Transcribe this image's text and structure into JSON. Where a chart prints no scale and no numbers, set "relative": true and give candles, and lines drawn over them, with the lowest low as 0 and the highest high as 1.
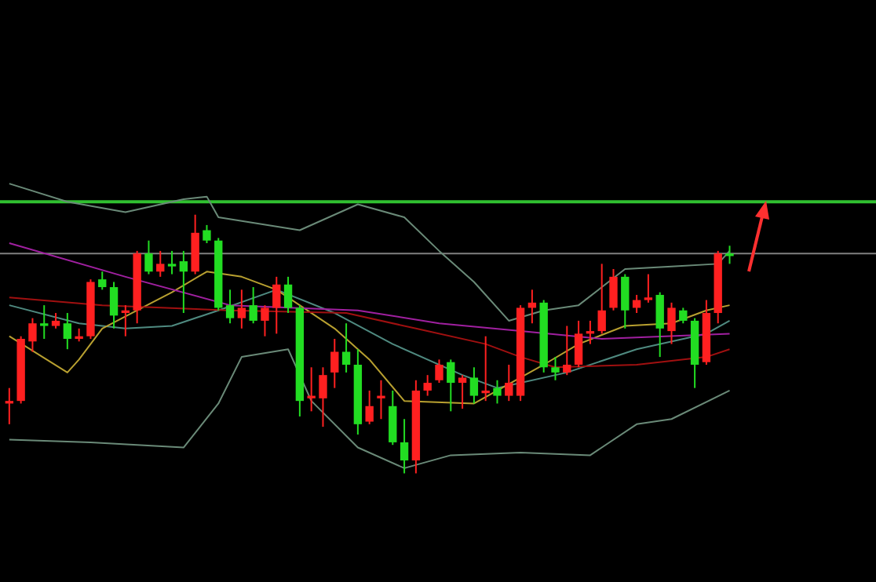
{
  "chart_data": {
    "type": "candlestick",
    "relative": true,
    "categories": [
      null,
      null,
      null,
      null,
      null,
      null,
      null,
      null,
      null,
      null,
      null,
      null,
      null,
      null,
      null,
      null,
      null,
      null,
      null,
      null,
      null,
      null,
      null,
      null,
      null,
      null,
      null,
      null,
      null,
      null,
      null,
      null,
      null,
      null,
      null,
      null,
      null,
      null,
      null,
      null,
      null,
      null,
      null,
      null,
      null,
      null,
      null,
      null,
      null,
      null,
      null,
      null,
      null,
      null,
      null,
      null,
      null,
      null,
      null,
      null,
      null,
      null,
      null
    ],
    "ohlc": [
      [
        0.27,
        0.33,
        0.19,
        0.28
      ],
      [
        0.28,
        0.53,
        0.27,
        0.52
      ],
      [
        0.51,
        0.6,
        0.47,
        0.58
      ],
      [
        0.58,
        0.65,
        0.52,
        0.57
      ],
      [
        0.57,
        0.62,
        0.56,
        0.59
      ],
      [
        0.58,
        0.62,
        0.48,
        0.52
      ],
      [
        0.52,
        0.56,
        0.51,
        0.53
      ],
      [
        0.53,
        0.75,
        0.52,
        0.74
      ],
      [
        0.75,
        0.78,
        0.71,
        0.72
      ],
      [
        0.72,
        0.74,
        0.56,
        0.61
      ],
      [
        0.62,
        0.65,
        0.53,
        0.63
      ],
      [
        0.63,
        0.86,
        0.58,
        0.85
      ],
      [
        0.85,
        0.9,
        0.77,
        0.78
      ],
      [
        0.78,
        0.86,
        0.76,
        0.81
      ],
      [
        0.81,
        0.86,
        0.77,
        0.8
      ],
      [
        0.82,
        0.86,
        0.62,
        0.78
      ],
      [
        0.78,
        1.0,
        0.77,
        0.93
      ],
      [
        0.94,
        0.96,
        0.89,
        0.9
      ],
      [
        0.9,
        0.91,
        0.63,
        0.64
      ],
      [
        0.65,
        0.71,
        0.58,
        0.6
      ],
      [
        0.6,
        0.71,
        0.56,
        0.64
      ],
      [
        0.65,
        0.72,
        0.58,
        0.59
      ],
      [
        0.59,
        0.65,
        0.53,
        0.64
      ],
      [
        0.64,
        0.76,
        0.54,
        0.73
      ],
      [
        0.73,
        0.76,
        0.62,
        0.64
      ],
      [
        0.64,
        0.65,
        0.22,
        0.28
      ],
      [
        0.29,
        0.41,
        0.24,
        0.3
      ],
      [
        0.29,
        0.41,
        0.18,
        0.38
      ],
      [
        0.39,
        0.52,
        0.33,
        0.47
      ],
      [
        0.47,
        0.58,
        0.39,
        0.42
      ],
      [
        0.42,
        0.48,
        0.15,
        0.19
      ],
      [
        0.2,
        0.32,
        0.19,
        0.26
      ],
      [
        0.29,
        0.36,
        0.21,
        0.3
      ],
      [
        0.26,
        0.32,
        0.11,
        0.12
      ],
      [
        0.12,
        0.21,
        0,
        0.05
      ],
      [
        0.05,
        0.36,
        0,
        0.32
      ],
      [
        0.32,
        0.38,
        0.3,
        0.35
      ],
      [
        0.36,
        0.44,
        0.35,
        0.42
      ],
      [
        0.43,
        0.44,
        0.24,
        0.35
      ],
      [
        0.35,
        0.38,
        0.25,
        0.37
      ],
      [
        0.37,
        0.41,
        0.27,
        0.3
      ],
      [
        0.31,
        0.53,
        0.28,
        0.32
      ],
      [
        0.33,
        0.36,
        0.27,
        0.3
      ],
      [
        0.3,
        0.42,
        0.28,
        0.35
      ],
      [
        0.3,
        0.65,
        0.28,
        0.64
      ],
      [
        0.64,
        0.71,
        0.58,
        0.66
      ],
      [
        0.66,
        0.67,
        0.39,
        0.41
      ],
      [
        0.41,
        0.45,
        0.36,
        0.39
      ],
      [
        0.39,
        0.57,
        0.38,
        0.42
      ],
      [
        0.42,
        0.59,
        0.41,
        0.54
      ],
      [
        0.54,
        0.59,
        0.5,
        0.55
      ],
      [
        0.55,
        0.81,
        0.54,
        0.63
      ],
      [
        0.64,
        0.79,
        0.63,
        0.76
      ],
      [
        0.76,
        0.77,
        0.56,
        0.63
      ],
      [
        0.64,
        0.69,
        0.62,
        0.67
      ],
      [
        0.67,
        0.77,
        0.66,
        0.68
      ],
      [
        0.69,
        0.7,
        0.45,
        0.56
      ],
      [
        0.55,
        0.66,
        0.5,
        0.64
      ],
      [
        0.63,
        0.64,
        0.58,
        0.59
      ],
      [
        0.59,
        0.6,
        0.33,
        0.42
      ],
      [
        0.43,
        0.67,
        0.42,
        0.62
      ],
      [
        0.62,
        0.86,
        0.58,
        0.85
      ],
      [
        0.85,
        0.88,
        0.81,
        0.84
      ]
    ],
    "colors": [
      "#ff2020",
      "#ff2020",
      "#ff2020",
      "#22dd22",
      "#ff2020",
      "#22dd22",
      "#ff2020",
      "#ff2020",
      "#22dd22",
      "#22dd22",
      "#ff2020",
      "#ff2020",
      "#22dd22",
      "#ff2020",
      "#22dd22",
      "#22dd22",
      "#ff2020",
      "#22dd22",
      "#22dd22",
      "#22dd22",
      "#ff2020",
      "#22dd22",
      "#ff2020",
      "#ff2020",
      "#22dd22",
      "#22dd22",
      "#ff2020",
      "#ff2020",
      "#ff2020",
      "#22dd22",
      "#22dd22",
      "#ff2020",
      "#ff2020",
      "#22dd22",
      "#22dd22",
      "#ff2020",
      "#ff2020",
      "#ff2020",
      "#22dd22",
      "#ff2020",
      "#22dd22",
      "#ff2020",
      "#22dd22",
      "#ff2020",
      "#ff2020",
      "#ff2020",
      "#22dd22",
      "#22dd22",
      "#ff2020",
      "#ff2020",
      "#ff2020",
      "#ff2020",
      "#ff2020",
      "#22dd22",
      "#ff2020",
      "#ff2020",
      "#22dd22",
      "#ff2020",
      "#22dd22",
      "#22dd22",
      "#ff2020",
      "#ff2020",
      "#22dd22"
    ],
    "series": [
      {
        "type": "line",
        "color": "#6a8a78",
        "values": [
          1.12,
          null,
          null,
          null,
          null,
          1.05,
          null,
          null,
          null,
          null,
          1.01,
          null,
          null,
          null,
          null,
          1.06,
          null,
          1.07,
          0.99,
          null,
          null,
          null,
          null,
          null,
          null,
          0.94,
          null,
          null,
          null,
          null,
          1.04,
          null,
          null,
          null,
          0.99,
          null,
          null,
          0.86,
          null,
          null,
          0.74,
          null,
          null,
          0.59,
          null,
          null,
          0.63,
          null,
          null,
          0.65,
          null,
          null,
          null,
          0.79,
          null,
          null,
          null,
          0.8,
          null,
          null,
          null,
          0.81,
          0.86
        ]
      },
      {
        "type": "line",
        "color": "#6a8a78",
        "values": [
          0.13,
          null,
          null,
          null,
          null,
          null,
          null,
          0.12,
          null,
          null,
          null,
          null,
          null,
          null,
          null,
          0.1,
          null,
          null,
          0.27,
          null,
          0.45,
          null,
          null,
          null,
          0.48,
          null,
          0.28,
          null,
          null,
          null,
          0.1,
          null,
          null,
          null,
          0.02,
          null,
          null,
          null,
          0.07,
          null,
          null,
          null,
          null,
          null,
          0.08,
          null,
          null,
          null,
          null,
          null,
          0.07,
          null,
          null,
          null,
          0.19,
          null,
          null,
          0.21,
          null,
          null,
          null,
          null,
          0.32
        ]
      },
      {
        "type": "line",
        "color": "#4f8a80",
        "values": [
          0.65,
          null,
          null,
          null,
          null,
          null,
          0.58,
          null,
          null,
          null,
          0.56,
          null,
          null,
          null,
          0.57,
          null,
          null,
          null,
          0.63,
          null,
          null,
          null,
          null,
          0.71,
          null,
          null,
          null,
          null,
          0.62,
          null,
          null,
          null,
          null,
          0.5,
          null,
          null,
          null,
          null,
          null,
          0.38,
          null,
          null,
          0.33,
          null,
          null,
          null,
          null,
          null,
          0.39,
          null,
          null,
          null,
          null,
          null,
          0.48,
          null,
          null,
          null,
          null,
          null,
          0.54,
          null,
          0.59
        ]
      },
      {
        "type": "line",
        "color": "#b8a030",
        "values": [
          0.53,
          null,
          null,
          null,
          null,
          0.39,
          0.44,
          null,
          0.56,
          null,
          null,
          0.63,
          null,
          null,
          0.7,
          null,
          null,
          0.78,
          null,
          null,
          0.76,
          null,
          null,
          0.71,
          null,
          null,
          null,
          null,
          0.56,
          null,
          null,
          0.44,
          null,
          null,
          0.28,
          null,
          null,
          null,
          null,
          null,
          0.27,
          null,
          0.32,
          null,
          null,
          null,
          0.42,
          null,
          null,
          0.5,
          null,
          null,
          null,
          0.57,
          null,
          null,
          null,
          0.58,
          null,
          null,
          0.63,
          null,
          0.65
        ]
      },
      {
        "type": "line",
        "color": "#a020a0",
        "values": [
          0.89,
          null,
          null,
          null,
          null,
          null,
          null,
          null,
          null,
          null,
          0.76,
          null,
          null,
          null,
          null,
          null,
          null,
          null,
          null,
          0.65,
          null,
          null,
          null,
          null,
          null,
          null,
          null,
          null,
          null,
          null,
          0.63,
          null,
          null,
          null,
          null,
          null,
          null,
          0.58,
          null,
          null,
          null,
          null,
          null,
          null,
          0.55,
          null,
          null,
          null,
          null,
          null,
          null,
          0.52,
          null,
          null,
          null,
          null,
          null,
          null,
          null,
          null,
          null,
          null,
          0.54
        ]
      },
      {
        "type": "line",
        "color": "#a01010",
        "values": [
          0.68,
          null,
          null,
          null,
          null,
          null,
          null,
          null,
          0.65,
          null,
          null,
          null,
          null,
          null,
          null,
          null,
          null,
          null,
          null,
          0.63,
          null,
          null,
          null,
          null,
          null,
          null,
          null,
          null,
          null,
          0.62,
          null,
          null,
          null,
          null,
          null,
          0.56,
          null,
          null,
          null,
          null,
          null,
          0.5,
          null,
          null,
          0.45,
          null,
          null,
          0.41,
          null,
          null,
          null,
          null,
          null,
          null,
          0.42,
          null,
          null,
          null,
          null,
          null,
          0.45,
          null,
          0.48
        ]
      }
    ],
    "ref_lines": [
      {
        "axis": "y",
        "value": 1.05,
        "color": "#30c030"
      },
      {
        "axis": "y",
        "value": 0.85,
        "color": "#808080"
      }
    ]
  }
}
